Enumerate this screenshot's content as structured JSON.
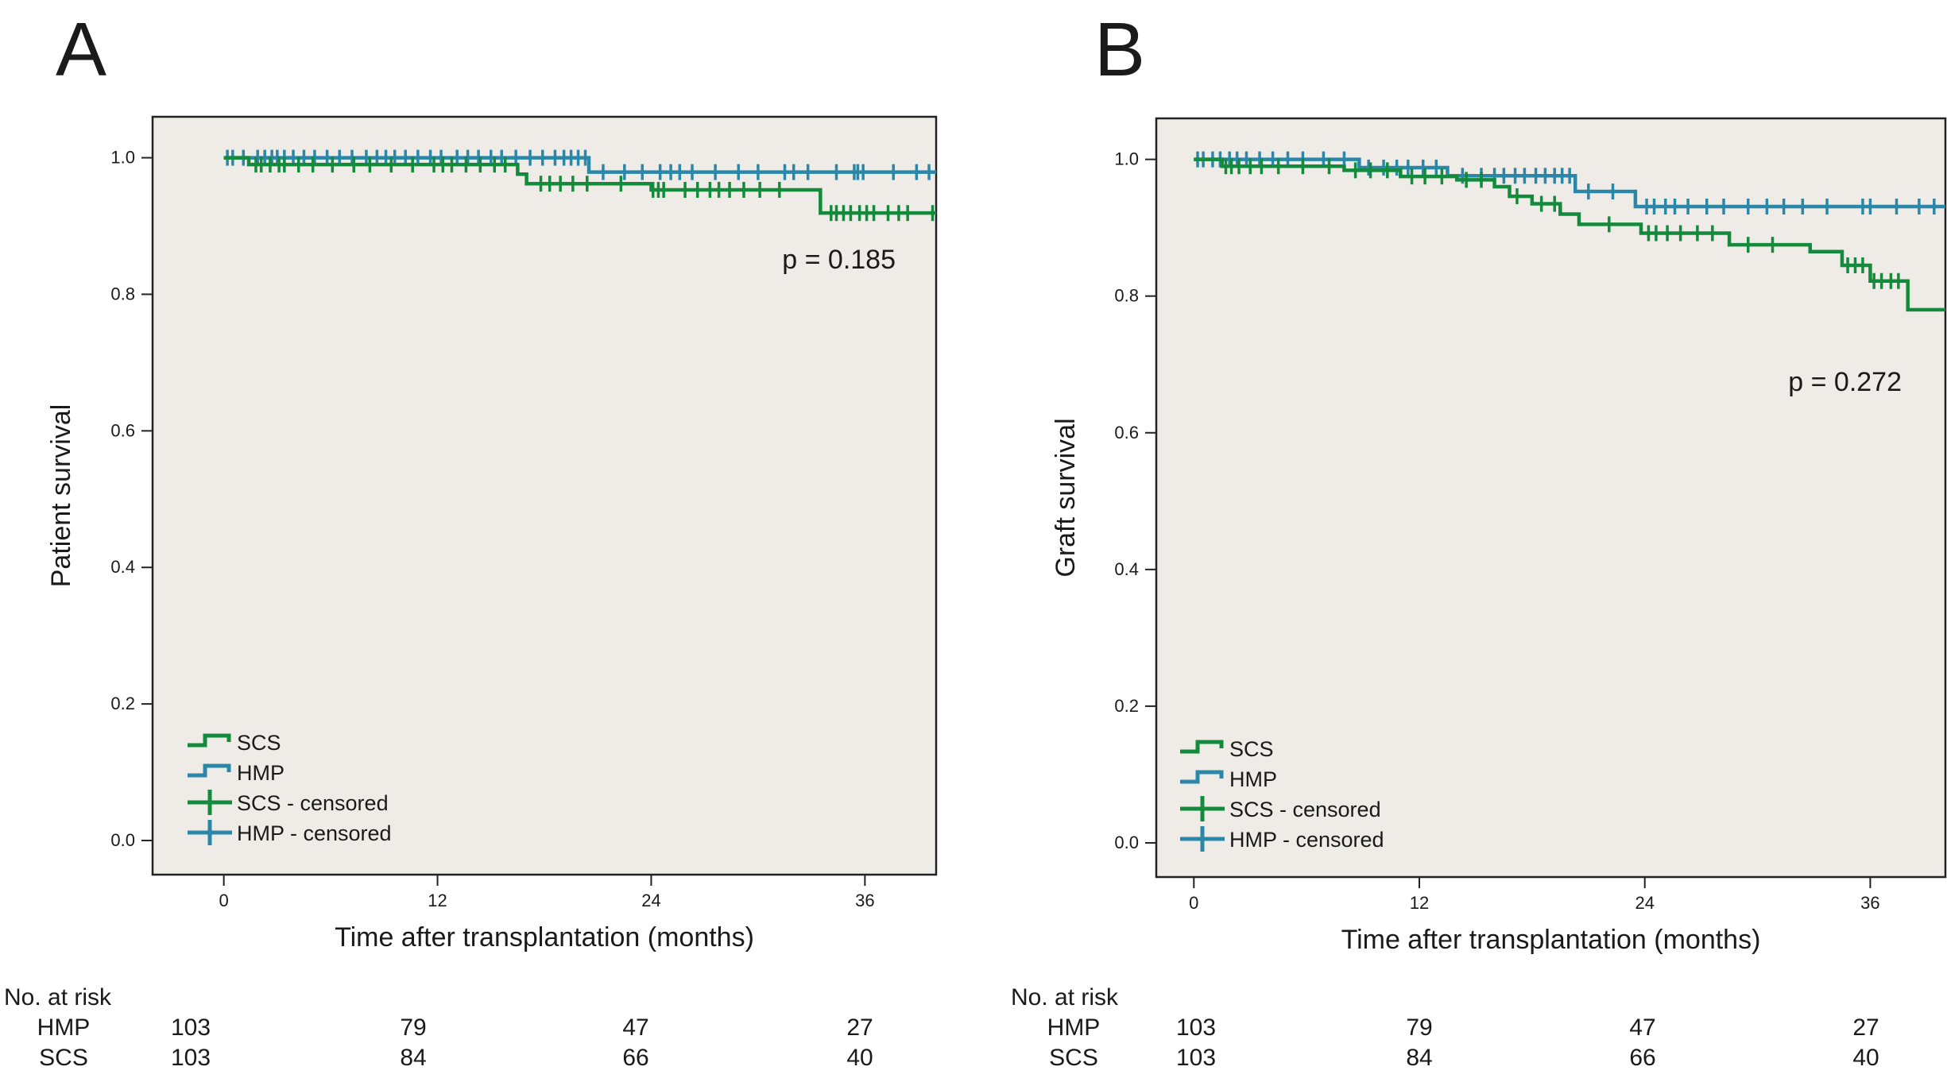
{
  "colors": {
    "scs": "#138a3c",
    "hmp": "#2b87a8",
    "plot_bg": "#efece7",
    "frame": "#222222"
  },
  "chart_data": [
    {
      "panel_label": "A",
      "type": "line",
      "subtype": "kaplan-meier",
      "xlabel": "Time after transplantation (months)",
      "ylabel": "Patient survival",
      "xlim": [
        -4,
        40
      ],
      "ylim": [
        -0.05,
        1.06
      ],
      "xticks": [
        {
          "value": 0,
          "label": "0"
        },
        {
          "value": 12,
          "label": "12"
        },
        {
          "value": 24,
          "label": "24"
        },
        {
          "value": 36,
          "label": "36"
        }
      ],
      "yticks": [
        {
          "value": 0.0,
          "label": "0.0"
        },
        {
          "value": 0.2,
          "label": "0.2"
        },
        {
          "value": 0.4,
          "label": "0.4"
        },
        {
          "value": 0.6,
          "label": "0.6"
        },
        {
          "value": 0.8,
          "label": "0.8"
        },
        {
          "value": 1.0,
          "label": "1.0"
        }
      ],
      "annotation": "p = 0.185",
      "legend": {
        "position": "bottom-left",
        "entries": [
          {
            "label": "SCS",
            "series": "scs",
            "kind": "line"
          },
          {
            "label": "HMP",
            "series": "hmp",
            "kind": "line"
          },
          {
            "label": "SCS - censored",
            "series": "scs",
            "kind": "censor"
          },
          {
            "label": "HMP - censored",
            "series": "hmp",
            "kind": "censor"
          }
        ]
      },
      "series": [
        {
          "key": "scs",
          "label": "SCS",
          "steps": [
            [
              0,
              1.0
            ],
            [
              1.4,
              0.99
            ],
            [
              16.5,
              0.976
            ],
            [
              17,
              0.962
            ],
            [
              24,
              0.953
            ],
            [
              33.5,
              0.919
            ],
            [
              40,
              0.919
            ]
          ],
          "censored": [
            1.8,
            2.1,
            2.6,
            3.1,
            3.4,
            4.2,
            5.0,
            6.1,
            7.3,
            8.2,
            9.4,
            10.6,
            11.8,
            12.3,
            12.8,
            13.6,
            14.4,
            15.2,
            15.8,
            17.8,
            18.3,
            18.9,
            19.6,
            20.4,
            22.3,
            24.1,
            24.4,
            24.7,
            25.9,
            26.6,
            27.3,
            27.8,
            28.4,
            29.2,
            30.1,
            31.2,
            34.1,
            34.4,
            34.8,
            35.2,
            35.7,
            36.1,
            36.5,
            37.3,
            37.9,
            38.4,
            39.8
          ]
        },
        {
          "key": "hmp",
          "label": "HMP",
          "steps": [
            [
              0,
              1.0
            ],
            [
              20.5,
              0.979
            ],
            [
              40,
              0.979
            ]
          ],
          "censored": [
            0.2,
            0.5,
            1.1,
            1.9,
            2.3,
            2.7,
            3.0,
            3.4,
            3.9,
            4.5,
            5.1,
            5.8,
            6.5,
            7.2,
            8.0,
            8.6,
            9.1,
            9.6,
            10.2,
            10.9,
            11.6,
            12.2,
            13.1,
            13.7,
            14.3,
            15.0,
            15.6,
            16.4,
            17.2,
            17.9,
            18.6,
            19.1,
            19.5,
            19.9,
            20.3,
            21.3,
            22.5,
            23.5,
            24.5,
            25.1,
            25.6,
            26.3,
            27.6,
            28.9,
            30.0,
            31.5,
            32.0,
            32.8,
            34.4,
            35.4,
            35.6,
            35.9,
            37.6,
            38.9,
            39.6
          ]
        }
      ]
    },
    {
      "panel_label": "B",
      "type": "line",
      "subtype": "kaplan-meier",
      "xlabel": "Time after transplantation (months)",
      "ylabel": "Graft survival",
      "xlim": [
        -2,
        40
      ],
      "ylim": [
        -0.05,
        1.06
      ],
      "xticks": [
        {
          "value": 0,
          "label": "0"
        },
        {
          "value": 12,
          "label": "12"
        },
        {
          "value": 24,
          "label": "24"
        },
        {
          "value": 36,
          "label": "36"
        }
      ],
      "yticks": [
        {
          "value": 0.0,
          "label": "0.0"
        },
        {
          "value": 0.2,
          "label": "0.2"
        },
        {
          "value": 0.4,
          "label": "0.4"
        },
        {
          "value": 0.6,
          "label": "0.6"
        },
        {
          "value": 0.8,
          "label": "0.8"
        },
        {
          "value": 1.0,
          "label": "1.0"
        }
      ],
      "annotation": "p = 0.272",
      "legend": {
        "position": "bottom-left",
        "entries": [
          {
            "label": "SCS",
            "series": "scs",
            "kind": "line"
          },
          {
            "label": "HMP",
            "series": "hmp",
            "kind": "line"
          },
          {
            "label": "SCS - censored",
            "series": "scs",
            "kind": "censor"
          },
          {
            "label": "HMP - censored",
            "series": "hmp",
            "kind": "censor"
          }
        ]
      },
      "series": [
        {
          "key": "scs",
          "label": "SCS",
          "steps": [
            [
              0,
              1.0
            ],
            [
              1.5,
              0.99
            ],
            [
              8,
              0.984
            ],
            [
              11,
              0.975
            ],
            [
              14,
              0.97
            ],
            [
              16,
              0.96
            ],
            [
              16.8,
              0.946
            ],
            [
              18,
              0.935
            ],
            [
              19.5,
              0.92
            ],
            [
              20.5,
              0.905
            ],
            [
              23.8,
              0.892
            ],
            [
              28.5,
              0.875
            ],
            [
              32.8,
              0.865
            ],
            [
              34.5,
              0.845
            ],
            [
              36,
              0.822
            ],
            [
              37.7,
              0.822
            ],
            [
              38,
              0.78
            ],
            [
              40,
              0.78
            ]
          ],
          "censored": [
            1.7,
            2.0,
            2.4,
            3.0,
            3.6,
            4.5,
            5.8,
            7.2,
            8.6,
            9.4,
            10.3,
            11.6,
            12.3,
            13.2,
            14.5,
            15.3,
            17.2,
            18.5,
            19.2,
            22.1,
            24.2,
            24.6,
            25.2,
            25.9,
            26.8,
            27.6,
            29.5,
            30.8,
            34.8,
            35.2,
            35.6,
            36.2,
            36.6,
            37.1,
            37.5
          ]
        },
        {
          "key": "hmp",
          "label": "HMP",
          "steps": [
            [
              0,
              1.0
            ],
            [
              8.8,
              0.988
            ],
            [
              13.5,
              0.976
            ],
            [
              20.3,
              0.953
            ],
            [
              23.5,
              0.931
            ],
            [
              40,
              0.931
            ]
          ],
          "censored": [
            0.2,
            0.5,
            1.0,
            1.4,
            1.9,
            2.3,
            2.8,
            3.5,
            4.2,
            5.0,
            5.8,
            6.9,
            8.0,
            9.3,
            10.1,
            10.8,
            11.4,
            12.2,
            12.9,
            14.3,
            15.3,
            16.0,
            16.5,
            17.1,
            17.6,
            18.2,
            18.7,
            19.2,
            19.6,
            20.0,
            21.0,
            22.3,
            24.1,
            24.5,
            25.1,
            25.6,
            26.3,
            27.3,
            28.2,
            29.5,
            30.5,
            31.4,
            32.4,
            33.7,
            35.6,
            36.0,
            37.4,
            38.6,
            39.4
          ]
        }
      ]
    }
  ],
  "risk_tables": [
    {
      "header": "No. at risk",
      "time_points": [
        0,
        12,
        24,
        36
      ],
      "rows": [
        {
          "label": "HMP",
          "values": [
            "103",
            "79",
            "47",
            "27"
          ]
        },
        {
          "label": "SCS",
          "values": [
            "103",
            "84",
            "66",
            "40"
          ]
        }
      ]
    },
    {
      "header": "No. at risk",
      "time_points": [
        0,
        12,
        24,
        36
      ],
      "rows": [
        {
          "label": "HMP",
          "values": [
            "103",
            "79",
            "47",
            "27"
          ]
        },
        {
          "label": "SCS",
          "values": [
            "103",
            "84",
            "66",
            "40"
          ]
        }
      ]
    }
  ]
}
